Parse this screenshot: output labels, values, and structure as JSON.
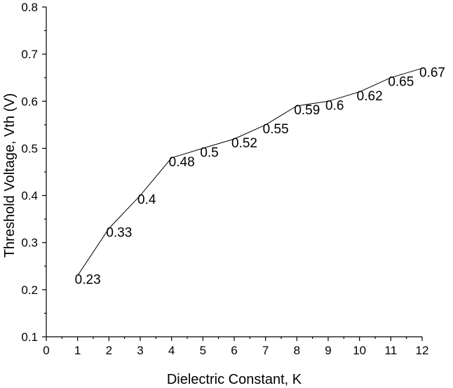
{
  "chart_data": {
    "type": "line",
    "title": "",
    "xlabel": "Dielectric Constant, K",
    "ylabel": "Threshold Voltage, Vth (V)",
    "xlim": [
      0,
      12
    ],
    "ylim": [
      0.1,
      0.8
    ],
    "x_ticks": [
      0,
      1,
      2,
      3,
      4,
      5,
      6,
      7,
      8,
      9,
      10,
      11,
      12
    ],
    "y_ticks": [
      0.1,
      0.2,
      0.3,
      0.4,
      0.5,
      0.6,
      0.7,
      0.8
    ],
    "grid": false,
    "series": [
      {
        "x": [
          1,
          2,
          3,
          4,
          5,
          6,
          7,
          8,
          9,
          10,
          11,
          12
        ],
        "values": [
          0.23,
          0.33,
          0.4,
          0.48,
          0.5,
          0.52,
          0.55,
          0.59,
          0.6,
          0.62,
          0.65,
          0.67
        ],
        "labels": [
          "0.23",
          "0.33",
          "0.4",
          "0.48",
          "0.5",
          "0.52",
          "0.55",
          "0.59",
          "0.6",
          "0.62",
          "0.65",
          "0.67"
        ]
      }
    ]
  }
}
